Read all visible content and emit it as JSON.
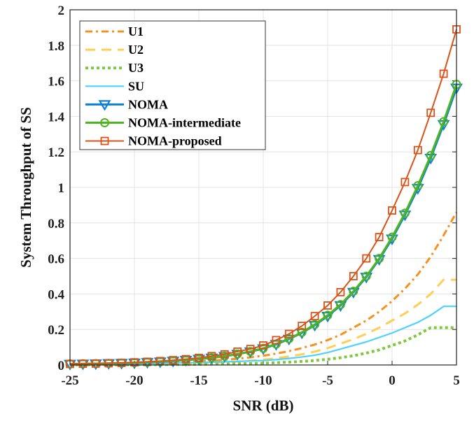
{
  "chart_data": {
    "type": "line",
    "title": "",
    "xlabel": "SNR (dB)",
    "ylabel": "System Throughput of SS",
    "xlim": [
      -25,
      5
    ],
    "ylim": [
      0,
      2
    ],
    "grid": true,
    "legend_position": "top-left",
    "x_ticks": [
      "-25",
      "-20",
      "-15",
      "-10",
      "-5",
      "0",
      "5"
    ],
    "x_tick_values": [
      -25,
      -20,
      -15,
      -10,
      -5,
      0,
      5
    ],
    "y_ticks": [
      "0",
      "0.2",
      "0.4",
      "0.6",
      "0.8",
      "1",
      "1.2",
      "1.4",
      "1.6",
      "1.8",
      "2"
    ],
    "y_tick_values": [
      0,
      0.2,
      0.4,
      0.6,
      0.8,
      1,
      1.2,
      1.4,
      1.6,
      1.8,
      2
    ],
    "x": [
      -25,
      -24,
      -23,
      -22,
      -21,
      -20,
      -19,
      -18,
      -17,
      -16,
      -15,
      -14,
      -13,
      -12,
      -11,
      -10,
      -9,
      -8,
      -7,
      -6,
      -5,
      -4,
      -3,
      -2,
      -1,
      0,
      1,
      2,
      3,
      4,
      5
    ],
    "series": [
      {
        "name": "U1",
        "color": "#F7901E",
        "style": "dashdot",
        "marker": "none",
        "values": [
          0.003,
          0.003,
          0.004,
          0.005,
          0.006,
          0.007,
          0.009,
          0.011,
          0.013,
          0.016,
          0.02,
          0.024,
          0.029,
          0.035,
          0.043,
          0.052,
          0.064,
          0.078,
          0.095,
          0.115,
          0.14,
          0.17,
          0.21,
          0.25,
          0.3,
          0.36,
          0.43,
          0.51,
          0.61,
          0.73,
          0.86
        ]
      },
      {
        "name": "U2",
        "color": "#FFCE55",
        "style": "dashed",
        "marker": "none",
        "values": [
          0.001,
          0.001,
          0.002,
          0.002,
          0.003,
          0.003,
          0.004,
          0.005,
          0.006,
          0.008,
          0.01,
          0.012,
          0.015,
          0.019,
          0.024,
          0.03,
          0.038,
          0.048,
          0.06,
          0.075,
          0.095,
          0.12,
          0.145,
          0.175,
          0.21,
          0.25,
          0.29,
          0.34,
          0.4,
          0.48,
          0.48
        ]
      },
      {
        "name": "U3",
        "color": "#7DC93B",
        "style": "dotted",
        "marker": "none",
        "values": [
          0.001,
          0.001,
          0.001,
          0.001,
          0.001,
          0.002,
          0.002,
          0.002,
          0.003,
          0.003,
          0.004,
          0.005,
          0.006,
          0.007,
          0.008,
          0.01,
          0.013,
          0.016,
          0.02,
          0.025,
          0.032,
          0.041,
          0.052,
          0.067,
          0.085,
          0.11,
          0.135,
          0.17,
          0.21,
          0.21,
          0.21
        ]
      },
      {
        "name": "SU",
        "color": "#4DD2FF",
        "style": "solid",
        "marker": "none",
        "values": [
          0.004,
          0.004,
          0.005,
          0.005,
          0.006,
          0.007,
          0.008,
          0.009,
          0.01,
          0.012,
          0.014,
          0.016,
          0.018,
          0.02,
          0.023,
          0.025,
          0.03,
          0.037,
          0.045,
          0.055,
          0.07,
          0.09,
          0.11,
          0.13,
          0.155,
          0.18,
          0.21,
          0.24,
          0.28,
          0.33,
          0.33
        ]
      },
      {
        "name": "NOMA",
        "color": "#0E7FD6",
        "style": "solid",
        "marker": "triangle-down",
        "values": [
          0.005,
          0.006,
          0.007,
          0.009,
          0.01,
          0.012,
          0.015,
          0.018,
          0.022,
          0.027,
          0.033,
          0.04,
          0.049,
          0.061,
          0.075,
          0.092,
          0.116,
          0.146,
          0.181,
          0.224,
          0.275,
          0.335,
          0.41,
          0.495,
          0.595,
          0.71,
          0.845,
          0.995,
          1.165,
          1.355,
          1.56
        ]
      },
      {
        "name": "NOMA-intermediate",
        "color": "#4DB51F",
        "style": "solid",
        "marker": "circle",
        "values": [
          0.006,
          0.007,
          0.008,
          0.009,
          0.011,
          0.013,
          0.016,
          0.019,
          0.023,
          0.028,
          0.034,
          0.041,
          0.05,
          0.062,
          0.076,
          0.094,
          0.118,
          0.148,
          0.184,
          0.228,
          0.28,
          0.34,
          0.415,
          0.5,
          0.6,
          0.72,
          0.855,
          1.01,
          1.18,
          1.37,
          1.58
        ]
      },
      {
        "name": "NOMA-proposed",
        "color": "#D95319",
        "style": "solid",
        "marker": "square",
        "values": [
          0.006,
          0.007,
          0.008,
          0.01,
          0.012,
          0.015,
          0.018,
          0.022,
          0.027,
          0.033,
          0.04,
          0.05,
          0.06,
          0.075,
          0.09,
          0.11,
          0.14,
          0.175,
          0.22,
          0.275,
          0.335,
          0.41,
          0.5,
          0.6,
          0.72,
          0.87,
          1.03,
          1.21,
          1.42,
          1.64,
          1.89
        ]
      }
    ]
  }
}
